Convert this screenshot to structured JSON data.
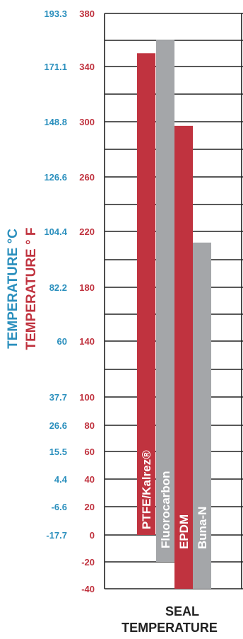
{
  "chart_data": {
    "type": "bar",
    "title": "",
    "xlabel": "",
    "ylabel_celsius": "TEMPERATURE °C",
    "ylabel_fahrenheit": "TEMPERATURE ° F",
    "x_title_line1": "SEAL",
    "x_title_line2": "TEMPERATURE",
    "ylim_f": [
      -40,
      380
    ],
    "ticks": [
      {
        "f": "380",
        "c": "193.3",
        "value": 380
      },
      {
        "f": "340",
        "c": "171.1",
        "value": 340
      },
      {
        "f": "300",
        "c": "148.8",
        "value": 300
      },
      {
        "f": "260",
        "c": "126.6",
        "value": 260
      },
      {
        "f": "220",
        "c": "104.4",
        "value": 220
      },
      {
        "f": "180",
        "c": "82.2",
        "value": 180
      },
      {
        "f": "140",
        "c": "60",
        "value": 140
      },
      {
        "f": "100",
        "c": "37.7",
        "value": 100
      },
      {
        "f": "80",
        "c": "26.6",
        "value": 80
      },
      {
        "f": "60",
        "c": "15.5",
        "value": 60
      },
      {
        "f": "40",
        "c": "4.4",
        "value": 40
      },
      {
        "f": "20",
        "c": "-6.6",
        "value": 20
      },
      {
        "f": "0",
        "c": "-17.7",
        "value": 0
      },
      {
        "f": "-20",
        "c": "",
        "value": -20
      },
      {
        "f": "-40",
        "c": "",
        "value": -40
      }
    ],
    "bars": [
      {
        "name": "PTFE/Kalrez®",
        "min": 0,
        "max": 350,
        "color": "#c0333f"
      },
      {
        "name": "Fluorocarbon",
        "min": -20,
        "max": 360,
        "color": "#a4a6a9"
      },
      {
        "name": "EPDM",
        "min": -40,
        "max": 297,
        "color": "#c0333f"
      },
      {
        "name": "Buna-N",
        "min": -40,
        "max": 212,
        "color": "#a4a6a9"
      }
    ],
    "colors": {
      "fahrenheit": "#c0333f",
      "celsius": "#2a8fbd",
      "grid": "#222222"
    }
  }
}
